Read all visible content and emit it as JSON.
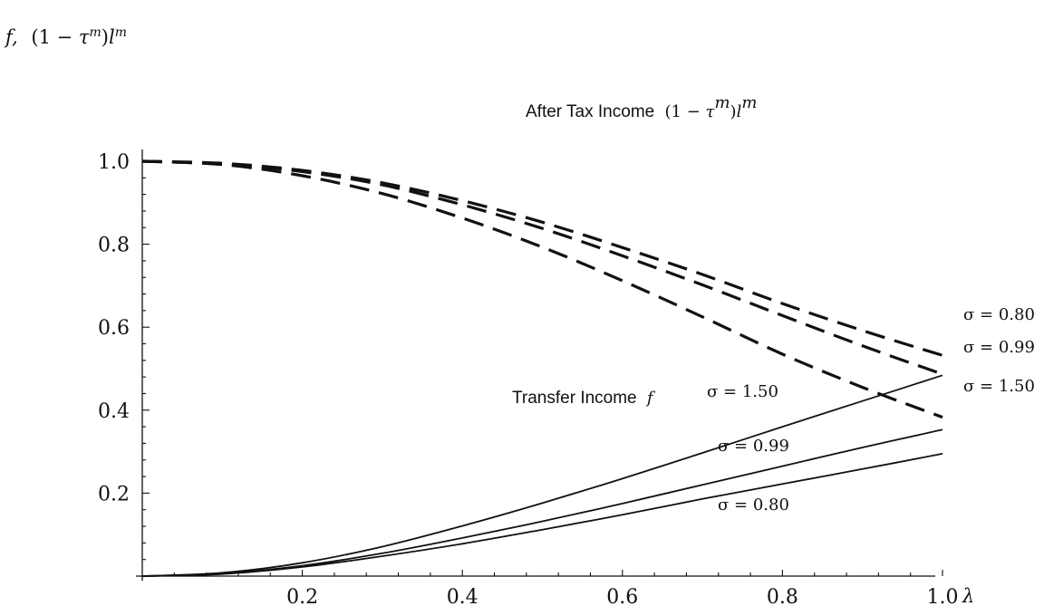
{
  "chart_data": {
    "type": "line",
    "ylabel": "f, (1 − τ^m)l^m",
    "xlabel": "λ",
    "xlim": [
      0,
      1
    ],
    "ylim": [
      0,
      1.05
    ],
    "x_ticks": [
      0.2,
      0.4,
      0.6,
      0.8,
      1.0
    ],
    "x_tick_labels": [
      "0.2",
      "0.4",
      "0.6",
      "0.8",
      "1.0"
    ],
    "y_ticks": [
      0.2,
      0.4,
      0.6,
      0.8,
      1.0
    ],
    "y_tick_labels": [
      "0.2",
      "0.4",
      "0.6",
      "0.8",
      "1.0"
    ],
    "grid": false,
    "x": [
      0,
      0.1,
      0.2,
      0.3,
      0.4,
      0.5,
      0.6,
      0.7,
      0.8,
      0.9,
      1.0
    ],
    "series": [
      {
        "group": "after_tax",
        "sigma": "0.80",
        "style": "dashed",
        "values": [
          1.0,
          0.995,
          0.978,
          0.948,
          0.905,
          0.853,
          0.792,
          0.727,
          0.657,
          0.592,
          0.532
        ]
      },
      {
        "group": "after_tax",
        "sigma": "0.99",
        "style": "dashed",
        "values": [
          1.0,
          0.993,
          0.975,
          0.943,
          0.895,
          0.838,
          0.772,
          0.702,
          0.628,
          0.555,
          0.487
        ]
      },
      {
        "group": "after_tax",
        "sigma": "1.50",
        "style": "dashed",
        "values": [
          1.0,
          0.992,
          0.965,
          0.922,
          0.863,
          0.793,
          0.712,
          0.625,
          0.535,
          0.455,
          0.383
        ]
      },
      {
        "group": "transfer",
        "sigma": "0.80",
        "style": "solid",
        "values": [
          0.0,
          0.005,
          0.022,
          0.048,
          0.078,
          0.112,
          0.148,
          0.186,
          0.222,
          0.258,
          0.295
        ]
      },
      {
        "group": "transfer",
        "sigma": "0.99",
        "style": "solid",
        "values": [
          0.0,
          0.006,
          0.025,
          0.055,
          0.092,
          0.132,
          0.175,
          0.22,
          0.265,
          0.31,
          0.353
        ]
      },
      {
        "group": "transfer",
        "sigma": "1.50",
        "style": "solid",
        "values": [
          0.0,
          0.008,
          0.032,
          0.071,
          0.121,
          0.176,
          0.235,
          0.297,
          0.36,
          0.422,
          0.484
        ]
      }
    ],
    "annotations": {
      "after_tax_label": "After Tax Income",
      "transfer_label": "Transfer Income",
      "sigma_dashed_top": "σ = 0.80",
      "sigma_dashed_mid": "σ = 0.99",
      "sigma_dashed_bot": "σ = 1.50",
      "sigma_solid_top": "σ = 1.50",
      "sigma_solid_mid": "σ = 0.99",
      "sigma_solid_bot": "σ = 0.80"
    }
  }
}
